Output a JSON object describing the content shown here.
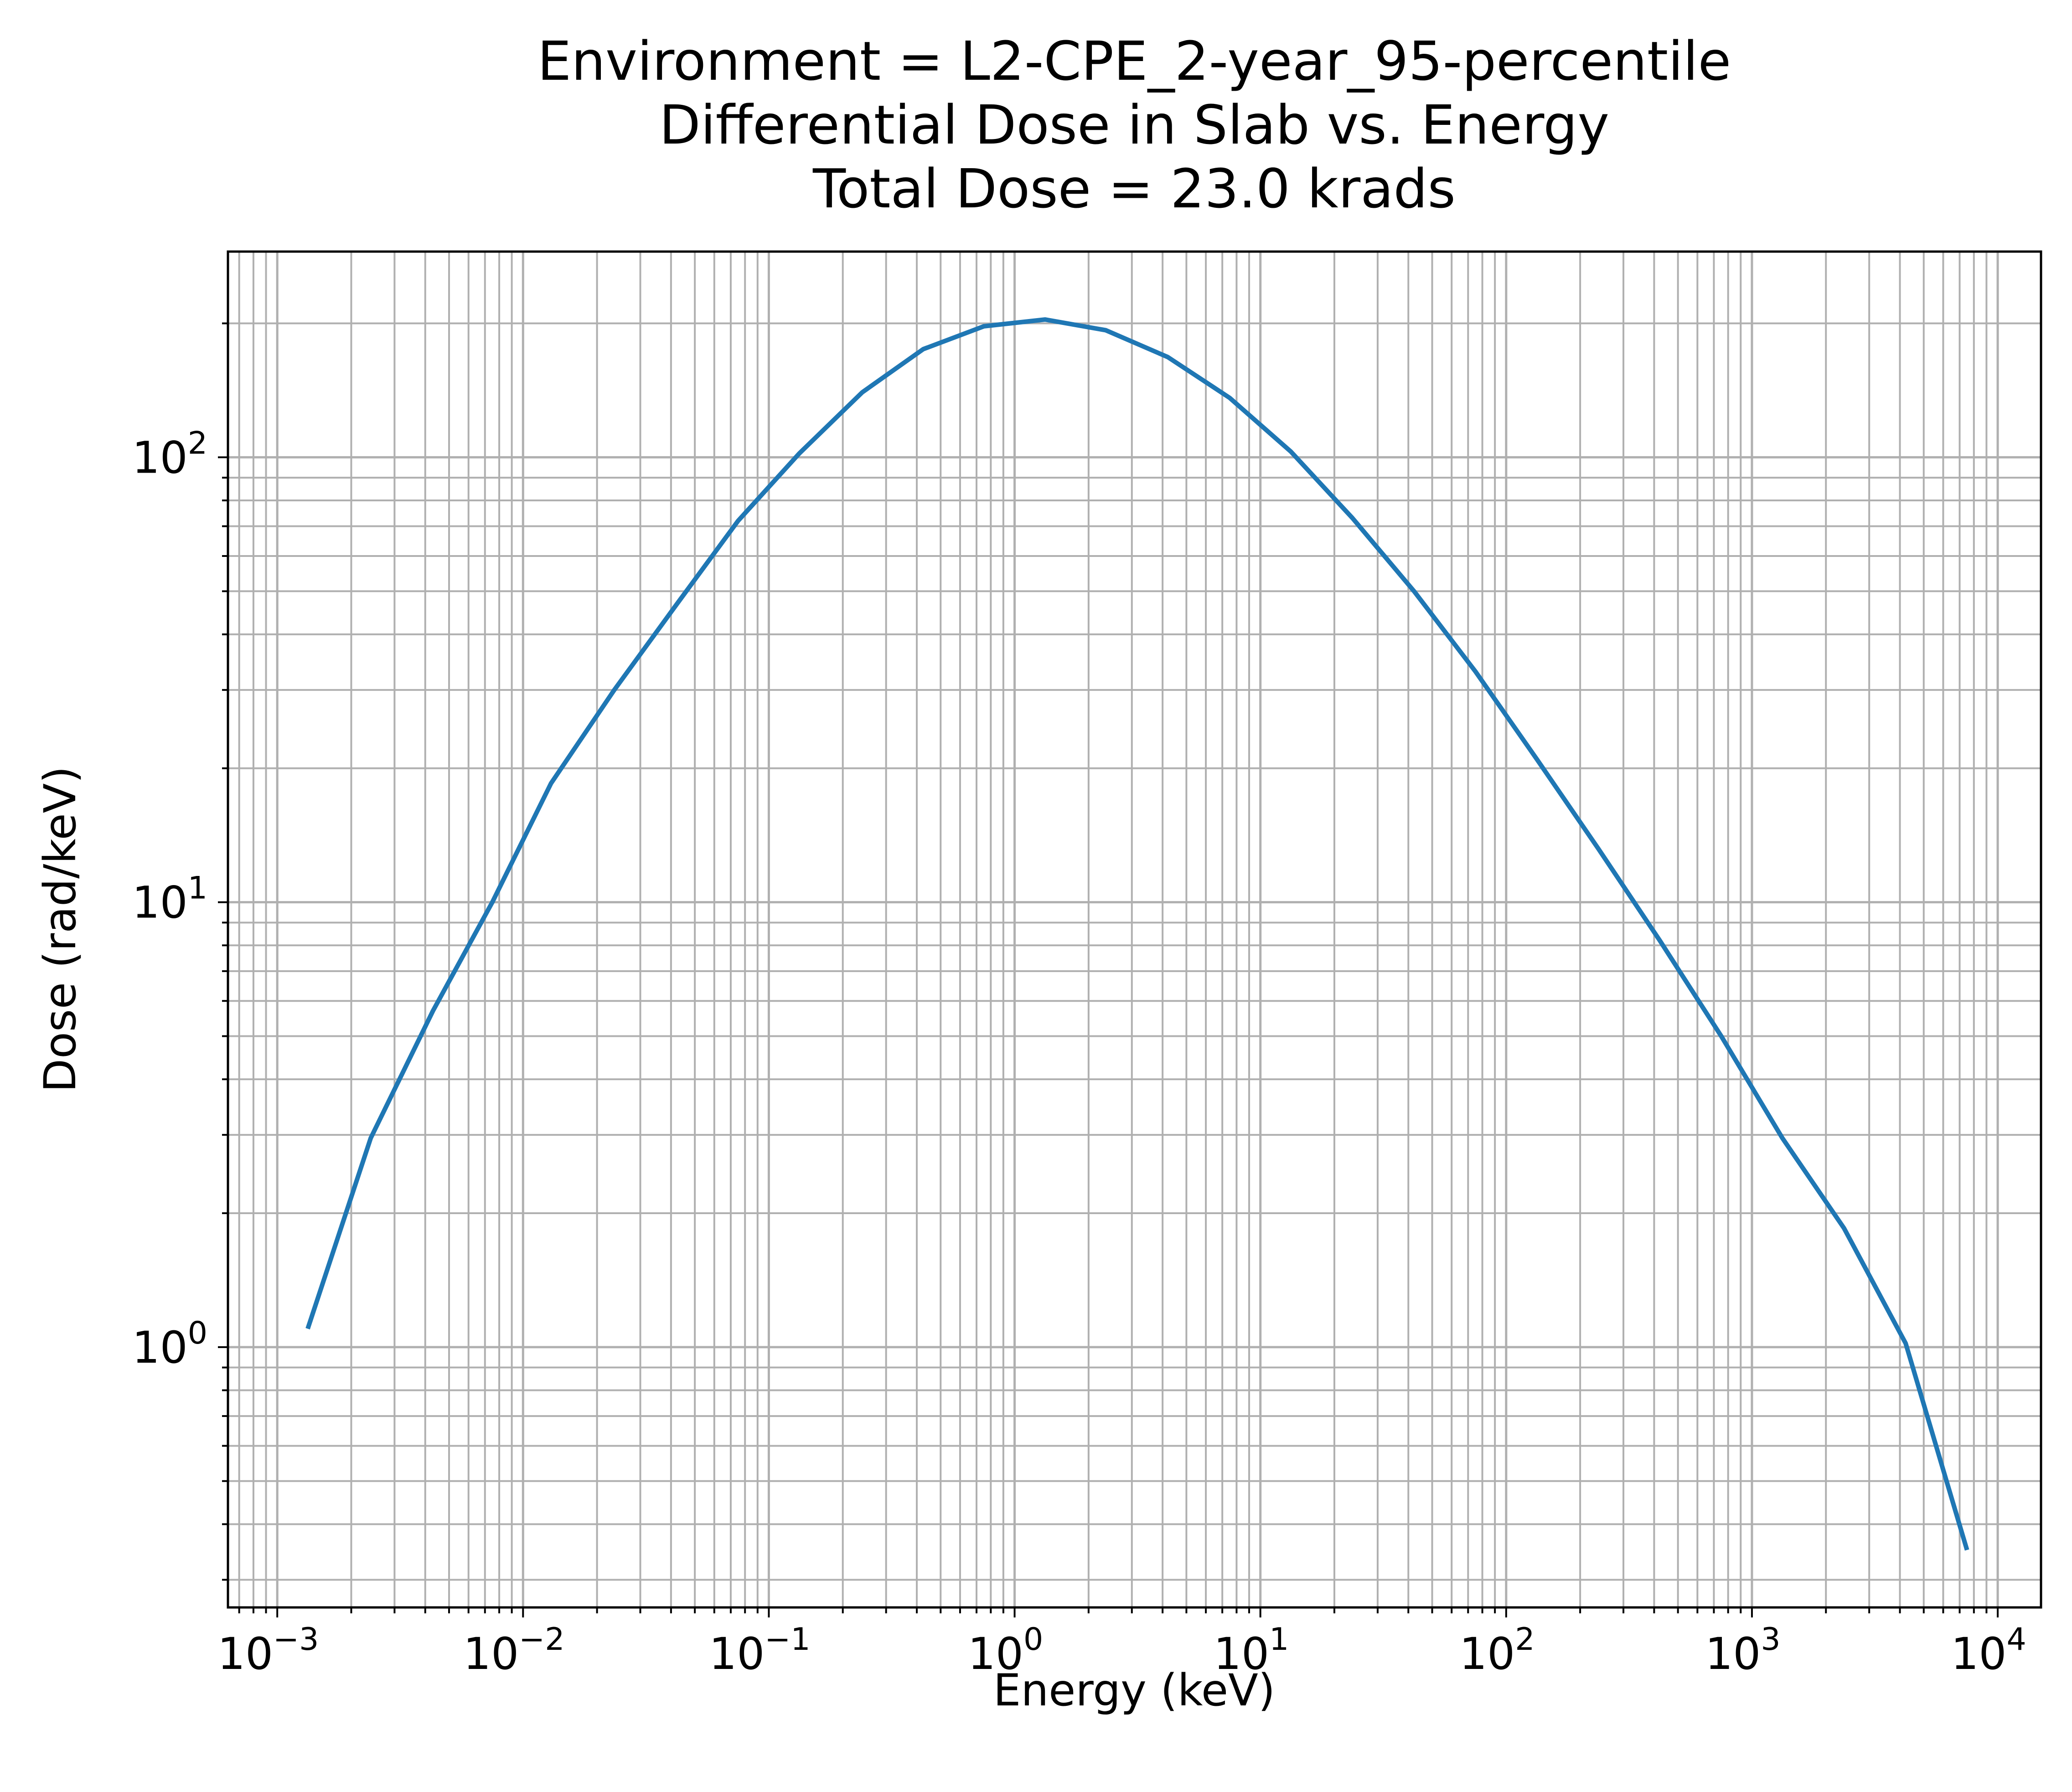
{
  "chart_data": {
    "type": "line",
    "title_lines": [
      "Environment = L2-CPE_2-year_95-percentile",
      "Differential Dose in Slab vs. Energy",
      "Total Dose = 23.0 krads"
    ],
    "xlabel": "Energy (keV)",
    "ylabel": "Dose (rad/keV)",
    "xscale": "log",
    "yscale": "log",
    "xlim": [
      0.00063,
      15000
    ],
    "ylim": [
      0.26,
      290
    ],
    "grid": true,
    "grid_minor": true,
    "legend": "none",
    "xticks": [
      {
        "base": "10",
        "exp": "−3",
        "value": 0.001
      },
      {
        "base": "10",
        "exp": "−2",
        "value": 0.01
      },
      {
        "base": "10",
        "exp": "−1",
        "value": 0.1
      },
      {
        "base": "10",
        "exp": "0",
        "value": 1
      },
      {
        "base": "10",
        "exp": "1",
        "value": 10
      },
      {
        "base": "10",
        "exp": "2",
        "value": 100
      },
      {
        "base": "10",
        "exp": "3",
        "value": 1000
      },
      {
        "base": "10",
        "exp": "4",
        "value": 10000
      }
    ],
    "yticks": [
      {
        "base": "10",
        "exp": "0",
        "value": 1
      },
      {
        "base": "10",
        "exp": "1",
        "value": 10
      },
      {
        "base": "10",
        "exp": "2",
        "value": 100
      }
    ],
    "series": [
      {
        "color": "#1f77b4",
        "x": [
          0.00133,
          0.0024,
          0.0043,
          0.0075,
          0.013,
          0.0235,
          0.0425,
          0.075,
          0.133,
          0.24,
          0.425,
          0.75,
          1.33,
          2.35,
          4.2,
          7.5,
          13.3,
          23.7,
          42.2,
          75,
          133,
          237,
          422,
          750,
          1330,
          2370,
          4220,
          7500
        ],
        "y": [
          1.1,
          2.95,
          5.7,
          10,
          18.5,
          30,
          47,
          72,
          102,
          140,
          175,
          197,
          204,
          193,
          168,
          136,
          103,
          73,
          50,
          33,
          21,
          13.2,
          8.2,
          5,
          2.95,
          1.85,
          1.02,
          0.35
        ]
      }
    ]
  },
  "colors": {
    "line": "#1f77b4",
    "grid": "#b0b0b0",
    "axes": "#000000"
  }
}
